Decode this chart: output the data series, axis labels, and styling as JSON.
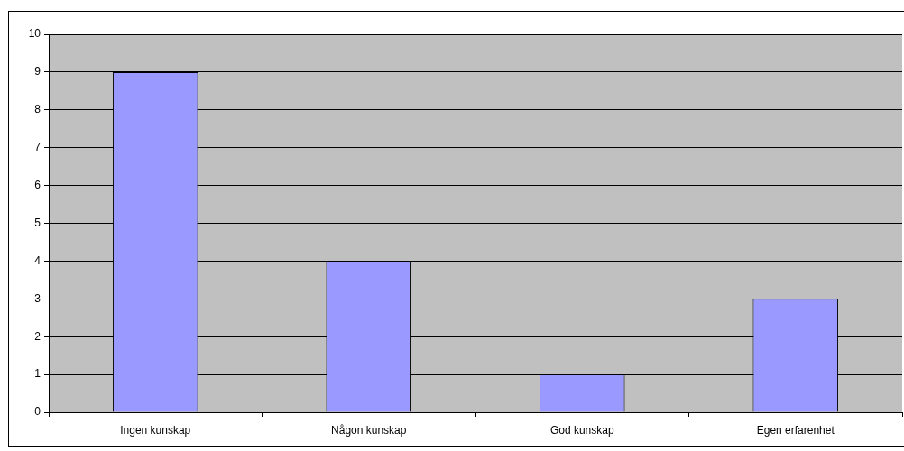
{
  "chart_data": {
    "type": "bar",
    "categories": [
      "Ingen kunskap",
      "Någon kunskap",
      "God kunskap",
      "Egen erfarenhet"
    ],
    "values": [
      9,
      4,
      1,
      3
    ],
    "color": "#9999ff",
    "ylim": [
      0,
      10
    ],
    "yticks": [
      0,
      1,
      2,
      3,
      4,
      5,
      6,
      7,
      8,
      9,
      10
    ],
    "grid": "y"
  }
}
